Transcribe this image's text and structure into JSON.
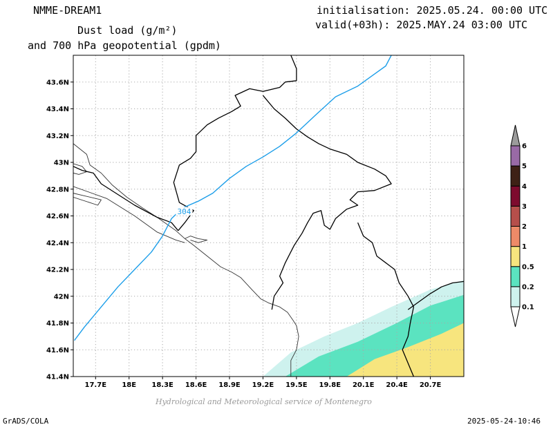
{
  "header": {
    "model": "NMME-DREAM1",
    "title_line1": "Dust load (g/m²)",
    "title_line2": "and 700 hPa geopotential (gpdm)",
    "init": "initialisation: 2025.05.24. 00:00 UTC",
    "valid": "valid(+03h): 2025.MAY.24 03:00 UTC"
  },
  "footer": {
    "left": "GrADS/COLA",
    "right": "2025-05-24-10:46",
    "credit": "Hydrological and Meteorological service of Montenegro"
  },
  "chart_data": {
    "type": "map",
    "projection": "lat-lon",
    "xlim": [
      17.5,
      21.0
    ],
    "ylim": [
      41.4,
      43.8
    ],
    "x_ticks": [
      {
        "value": 17.7,
        "label": "17.7E"
      },
      {
        "value": 18.0,
        "label": "18E"
      },
      {
        "value": 18.3,
        "label": "18.3E"
      },
      {
        "value": 18.6,
        "label": "18.6E"
      },
      {
        "value": 18.9,
        "label": "18.9E"
      },
      {
        "value": 19.2,
        "label": "19.2E"
      },
      {
        "value": 19.5,
        "label": "19.5E"
      },
      {
        "value": 19.8,
        "label": "19.8E"
      },
      {
        "value": 20.1,
        "label": "20.1E"
      },
      {
        "value": 20.4,
        "label": "20.4E"
      },
      {
        "value": 20.7,
        "label": "20.7E"
      }
    ],
    "y_ticks": [
      {
        "value": 41.4,
        "label": "41.4N"
      },
      {
        "value": 41.6,
        "label": "41.6N"
      },
      {
        "value": 41.8,
        "label": "41.8N"
      },
      {
        "value": 42.0,
        "label": "42N"
      },
      {
        "value": 42.2,
        "label": "42.2N"
      },
      {
        "value": 42.4,
        "label": "42.4N"
      },
      {
        "value": 42.6,
        "label": "42.6N"
      },
      {
        "value": 42.8,
        "label": "42.8N"
      },
      {
        "value": 43.0,
        "label": "43N"
      },
      {
        "value": 43.2,
        "label": "43.2N"
      },
      {
        "value": 43.4,
        "label": "43.4N"
      },
      {
        "value": 43.6,
        "label": "43.6N"
      }
    ],
    "grid": true,
    "colorbar": {
      "placement": "right",
      "levels": [
        "0.1",
        "0.2",
        "0.5",
        "1",
        "2",
        "3",
        "4",
        "5",
        "6"
      ],
      "colors": [
        "#cef2ee",
        "#5be3c0",
        "#f7e57e",
        "#ee8a68",
        "#b64f4b",
        "#7d0b2e",
        "#3e2116",
        "#996aa6",
        "#9b9b9b"
      ]
    },
    "contours": [
      {
        "field": "geopotential_700hPa",
        "level_label": "304",
        "color": "#1c9ee9",
        "points": [
          [
            17.51,
            41.67
          ],
          [
            17.6,
            41.77
          ],
          [
            17.75,
            41.92
          ],
          [
            17.9,
            42.07
          ],
          [
            18.05,
            42.2
          ],
          [
            18.2,
            42.33
          ],
          [
            18.3,
            42.45
          ],
          [
            18.38,
            42.58
          ],
          [
            18.48,
            42.66
          ],
          [
            18.62,
            42.71
          ],
          [
            18.75,
            42.77
          ],
          [
            18.9,
            42.88
          ],
          [
            19.05,
            42.97
          ],
          [
            19.2,
            43.04
          ],
          [
            19.35,
            43.12
          ],
          [
            19.5,
            43.22
          ],
          [
            19.68,
            43.36
          ],
          [
            19.85,
            43.49
          ],
          [
            20.05,
            43.57
          ],
          [
            20.2,
            43.66
          ],
          [
            20.3,
            43.72
          ],
          [
            20.35,
            43.8
          ]
        ]
      }
    ],
    "dust_fields": [
      {
        "level": "0.1",
        "points": [
          [
            19.2,
            41.4
          ],
          [
            19.45,
            41.58
          ],
          [
            19.75,
            41.7
          ],
          [
            20.05,
            41.8
          ],
          [
            20.35,
            41.92
          ],
          [
            20.7,
            42.05
          ],
          [
            21.0,
            42.12
          ],
          [
            21.0,
            41.4
          ]
        ]
      },
      {
        "level": "0.2",
        "points": [
          [
            19.4,
            41.4
          ],
          [
            19.7,
            41.55
          ],
          [
            20.05,
            41.66
          ],
          [
            20.4,
            41.8
          ],
          [
            20.7,
            41.93
          ],
          [
            21.0,
            42.01
          ],
          [
            21.0,
            41.4
          ]
        ]
      },
      {
        "level": "0.5",
        "points": [
          [
            19.95,
            41.4
          ],
          [
            20.2,
            41.53
          ],
          [
            20.5,
            41.62
          ],
          [
            20.8,
            41.72
          ],
          [
            21.0,
            41.8
          ],
          [
            21.0,
            41.4
          ]
        ]
      }
    ],
    "boundaries": [
      {
        "kind": "coast",
        "points": [
          [
            17.5,
            43.14
          ],
          [
            17.62,
            43.06
          ],
          [
            17.65,
            42.98
          ],
          [
            17.75,
            42.92
          ],
          [
            17.85,
            42.83
          ],
          [
            17.98,
            42.74
          ],
          [
            18.12,
            42.66
          ],
          [
            18.25,
            42.59
          ],
          [
            18.42,
            42.49
          ],
          [
            18.5,
            42.43
          ],
          [
            18.58,
            42.38
          ],
          [
            18.7,
            42.3
          ],
          [
            18.82,
            42.22
          ],
          [
            18.92,
            42.18
          ],
          [
            19.0,
            42.14
          ],
          [
            19.1,
            42.05
          ],
          [
            19.18,
            41.98
          ],
          [
            19.25,
            41.95
          ],
          [
            19.35,
            41.92
          ],
          [
            19.42,
            41.88
          ],
          [
            19.47,
            41.82
          ],
          [
            19.5,
            41.78
          ],
          [
            19.52,
            41.7
          ],
          [
            19.5,
            41.6
          ],
          [
            19.45,
            41.52
          ],
          [
            19.45,
            41.4
          ]
        ]
      },
      {
        "kind": "coast",
        "points": [
          [
            17.5,
            42.99
          ],
          [
            17.58,
            42.97
          ],
          [
            17.62,
            42.93
          ],
          [
            17.55,
            42.91
          ],
          [
            17.5,
            42.92
          ]
        ]
      },
      {
        "kind": "coast",
        "points": [
          [
            17.5,
            42.82
          ],
          [
            17.8,
            42.73
          ],
          [
            18.05,
            42.6
          ],
          [
            18.25,
            42.48
          ],
          [
            18.42,
            42.42
          ],
          [
            18.5,
            42.4
          ]
        ]
      },
      {
        "kind": "coast",
        "points": [
          [
            17.5,
            42.77
          ],
          [
            17.75,
            42.72
          ],
          [
            17.72,
            42.68
          ],
          [
            17.5,
            42.74
          ]
        ]
      },
      {
        "kind": "coast",
        "points": [
          [
            18.5,
            42.43
          ],
          [
            18.55,
            42.45
          ],
          [
            18.62,
            42.43
          ],
          [
            18.7,
            42.42
          ],
          [
            18.62,
            42.4
          ],
          [
            18.55,
            42.42
          ]
        ]
      },
      {
        "kind": "border",
        "points": [
          [
            17.5,
            42.97
          ],
          [
            17.58,
            42.94
          ],
          [
            17.68,
            42.92
          ],
          [
            17.75,
            42.84
          ],
          [
            17.9,
            42.76
          ],
          [
            18.05,
            42.68
          ],
          [
            18.25,
            42.59
          ],
          [
            18.38,
            42.55
          ],
          [
            18.44,
            42.49
          ]
        ]
      },
      {
        "kind": "border",
        "points": [
          [
            18.44,
            42.49
          ],
          [
            18.5,
            42.55
          ],
          [
            18.58,
            42.64
          ],
          [
            18.45,
            42.7
          ],
          [
            18.4,
            42.85
          ],
          [
            18.45,
            42.98
          ],
          [
            18.55,
            43.03
          ],
          [
            18.6,
            43.08
          ],
          [
            18.6,
            43.2
          ],
          [
            18.7,
            43.28
          ],
          [
            18.8,
            43.33
          ],
          [
            18.92,
            43.38
          ],
          [
            19.0,
            43.42
          ],
          [
            18.95,
            43.5
          ],
          [
            19.08,
            43.55
          ],
          [
            19.2,
            43.53
          ],
          [
            19.35,
            43.56
          ],
          [
            19.4,
            43.6
          ],
          [
            19.5,
            43.61
          ],
          [
            19.5,
            43.7
          ],
          [
            19.45,
            43.8
          ]
        ]
      },
      {
        "kind": "border",
        "points": [
          [
            19.2,
            43.5
          ],
          [
            19.3,
            43.4
          ],
          [
            19.4,
            43.33
          ],
          [
            19.5,
            43.25
          ],
          [
            19.6,
            43.19
          ],
          [
            19.7,
            43.14
          ],
          [
            19.8,
            43.1
          ],
          [
            19.95,
            43.06
          ],
          [
            20.05,
            43.0
          ],
          [
            20.2,
            42.95
          ],
          [
            20.3,
            42.9
          ],
          [
            20.35,
            42.84
          ],
          [
            20.2,
            42.79
          ],
          [
            20.05,
            42.78
          ],
          [
            19.98,
            42.72
          ],
          [
            20.05,
            42.68
          ],
          [
            19.95,
            42.65
          ],
          [
            19.85,
            42.58
          ],
          [
            19.8,
            42.5
          ],
          [
            19.75,
            42.53
          ],
          [
            19.72,
            42.64
          ],
          [
            19.65,
            42.62
          ],
          [
            19.6,
            42.55
          ],
          [
            19.55,
            42.47
          ],
          [
            19.48,
            42.38
          ],
          [
            19.4,
            42.25
          ],
          [
            19.35,
            42.15
          ],
          [
            19.38,
            42.1
          ],
          [
            19.3,
            42.0
          ],
          [
            19.28,
            41.9
          ]
        ]
      },
      {
        "kind": "border",
        "points": [
          [
            20.05,
            42.55
          ],
          [
            20.1,
            42.45
          ],
          [
            20.18,
            42.4
          ],
          [
            20.22,
            42.3
          ],
          [
            20.3,
            42.25
          ],
          [
            20.38,
            42.2
          ],
          [
            20.42,
            42.1
          ],
          [
            20.5,
            42.0
          ],
          [
            20.55,
            41.92
          ],
          [
            20.52,
            41.8
          ],
          [
            20.5,
            41.7
          ],
          [
            20.45,
            41.6
          ],
          [
            20.5,
            41.5
          ],
          [
            20.55,
            41.4
          ]
        ]
      },
      {
        "kind": "border",
        "points": [
          [
            20.5,
            41.9
          ],
          [
            20.6,
            41.96
          ],
          [
            20.7,
            42.02
          ],
          [
            20.8,
            42.07
          ],
          [
            20.9,
            42.1
          ],
          [
            21.0,
            42.11
          ]
        ]
      }
    ]
  }
}
